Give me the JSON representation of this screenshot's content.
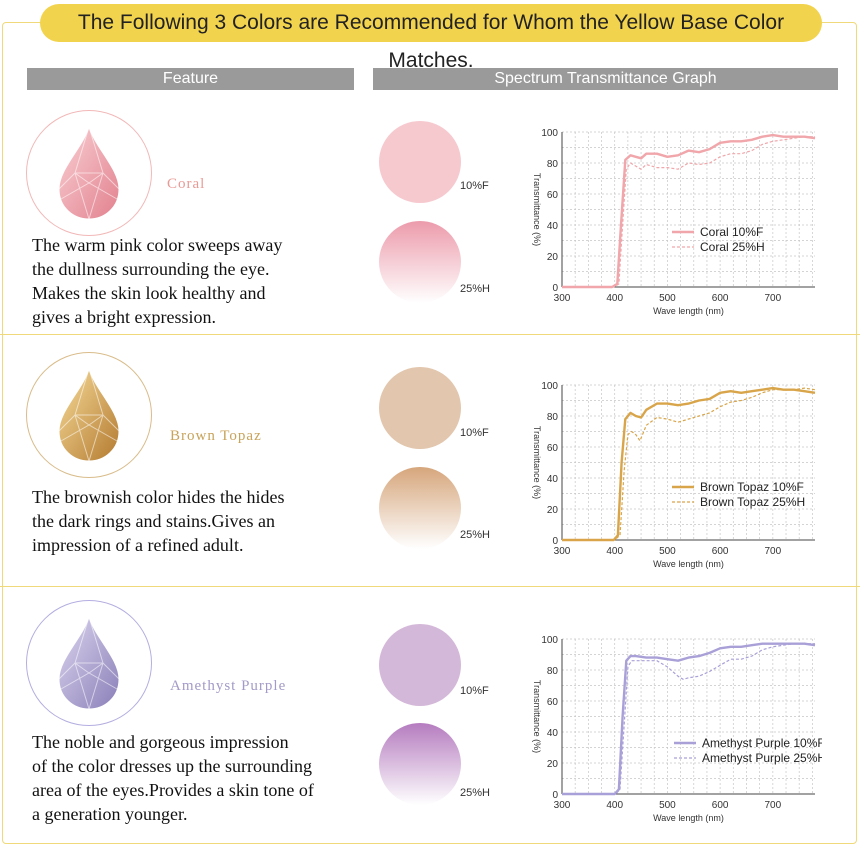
{
  "banner": "The Following 3 Colors are Recommended for Whom the Yellow Base Color Matches.",
  "headers": {
    "feature": "Feature",
    "graph": "Spectrum Transmittance Graph"
  },
  "products": [
    {
      "name": "Coral",
      "description": "The warm pink color sweeps away\nthe dullness surrounding the eye.\nMakes the skin look healthy and\ngives a bright expression.",
      "swatch_labels": [
        "10%F",
        "25%H"
      ],
      "colors": {
        "accent": "#f0a6aa",
        "name_text": "#e89a95",
        "ring": "#f2b8b8",
        "swatch_solid": "#f6c9cf",
        "swatch_grad_top": "#ec9bab",
        "gem_light": "#f9d0d4",
        "gem_dark": "#e2818e"
      }
    },
    {
      "name": "Brown Topaz",
      "description": "The brownish color hides the hides\nthe dark rings and stains.Gives an\nimpression of a refined adult.",
      "swatch_labels": [
        "10%F",
        "25%H"
      ],
      "colors": {
        "accent": "#d9a54a",
        "name_text": "#c8a35a",
        "ring": "#d9bc8a",
        "swatch_solid": "#e2c6ad",
        "swatch_grad_top": "#d6a67c",
        "gem_light": "#f6dc9a",
        "gem_dark": "#b47a30"
      }
    },
    {
      "name": "Amethyst Purple",
      "description": "The noble and gorgeous impression\nof the color dresses up the surrounding\narea of the eyes.Provides a skin tone of\na generation younger.",
      "swatch_labels": [
        "10%F",
        "25%H"
      ],
      "colors": {
        "accent": "#a9a0d8",
        "name_text": "#a49ac8",
        "ring": "#b3aee0",
        "swatch_solid": "#d4b8d9",
        "swatch_grad_top": "#b57cbf",
        "gem_light": "#ddd6ef",
        "gem_dark": "#8a7fb8"
      }
    }
  ],
  "chart_data": [
    {
      "type": "line",
      "ylabel": "Transmittance (%)",
      "xlabel": "Wave length (nm)",
      "xlim": [
        300,
        780
      ],
      "ylim": [
        0,
        100
      ],
      "xticks": [
        300,
        400,
        500,
        600,
        700
      ],
      "yticks": [
        0,
        20,
        40,
        60,
        80,
        100
      ],
      "grid": true,
      "legend": "center-right",
      "series": [
        {
          "name": "Coral 10%F",
          "style": "solid",
          "x": [
            300,
            395,
            405,
            412,
            420,
            430,
            440,
            450,
            460,
            480,
            500,
            520,
            540,
            560,
            580,
            600,
            620,
            640,
            660,
            680,
            700,
            720,
            740,
            760,
            780
          ],
          "y": [
            0,
            0,
            2,
            40,
            82,
            85,
            84,
            83,
            86,
            86,
            84,
            85,
            88,
            87,
            89,
            93,
            94,
            94,
            95,
            97,
            98,
            97,
            97,
            97,
            96
          ]
        },
        {
          "name": "Coral 25%H",
          "style": "dashed",
          "x": [
            300,
            398,
            408,
            415,
            422,
            430,
            440,
            450,
            460,
            480,
            500,
            520,
            540,
            560,
            580,
            600,
            620,
            640,
            660,
            680,
            700,
            720,
            740,
            760,
            780
          ],
          "y": [
            0,
            0,
            2,
            40,
            76,
            80,
            78,
            76,
            79,
            77,
            77,
            76,
            80,
            79,
            80,
            84,
            86,
            86,
            88,
            92,
            94,
            95,
            96,
            97,
            97
          ]
        }
      ]
    },
    {
      "type": "line",
      "ylabel": "Transmittance (%)",
      "xlabel": "Wave length (nm)",
      "xlim": [
        300,
        780
      ],
      "ylim": [
        0,
        100
      ],
      "xticks": [
        300,
        400,
        500,
        600,
        700
      ],
      "yticks": [
        0,
        20,
        40,
        60,
        80,
        100
      ],
      "grid": true,
      "legend": "center-right",
      "series": [
        {
          "name": "Brown Topaz 10%F",
          "style": "solid",
          "x": [
            300,
            398,
            406,
            413,
            420,
            430,
            440,
            450,
            460,
            480,
            500,
            520,
            540,
            560,
            580,
            600,
            620,
            640,
            660,
            680,
            700,
            720,
            740,
            760,
            780
          ],
          "y": [
            0,
            0,
            3,
            50,
            78,
            82,
            80,
            79,
            84,
            88,
            88,
            87,
            88,
            90,
            91,
            95,
            96,
            95,
            96,
            97,
            98,
            97,
            97,
            96,
            95
          ]
        },
        {
          "name": "Brown Topaz 25%H",
          "style": "dashed",
          "x": [
            300,
            400,
            410,
            418,
            425,
            432,
            440,
            448,
            460,
            480,
            500,
            520,
            540,
            560,
            580,
            600,
            620,
            640,
            660,
            680,
            700,
            720,
            740,
            760,
            780
          ],
          "y": [
            0,
            0,
            3,
            45,
            68,
            70,
            68,
            64,
            74,
            79,
            78,
            76,
            78,
            80,
            82,
            86,
            89,
            90,
            92,
            95,
            97,
            97,
            97,
            98,
            97
          ]
        }
      ]
    },
    {
      "type": "line",
      "ylabel": "Transmittance (%)",
      "xlabel": "Wave length (nm)",
      "xlim": [
        300,
        780
      ],
      "ylim": [
        0,
        100
      ],
      "xticks": [
        300,
        400,
        500,
        600,
        700
      ],
      "yticks": [
        0,
        20,
        40,
        60,
        80,
        100
      ],
      "grid": true,
      "legend": "bottom-right",
      "series": [
        {
          "name": "Amethyst Purple 10%F",
          "style": "solid",
          "x": [
            300,
            400,
            408,
            415,
            422,
            430,
            440,
            460,
            480,
            500,
            520,
            540,
            560,
            580,
            600,
            620,
            640,
            660,
            680,
            700,
            720,
            740,
            760,
            780
          ],
          "y": [
            0,
            0,
            3,
            50,
            86,
            89,
            89,
            88,
            88,
            87,
            86,
            88,
            89,
            91,
            94,
            95,
            95,
            96,
            97,
            97,
            97,
            97,
            97,
            96
          ]
        },
        {
          "name": "Amethyst Purple 25%H",
          "style": "dashed",
          "x": [
            300,
            402,
            410,
            418,
            425,
            432,
            440,
            460,
            480,
            500,
            520,
            530,
            540,
            560,
            580,
            600,
            620,
            640,
            660,
            680,
            700,
            720,
            740,
            760,
            780
          ],
          "y": [
            0,
            0,
            3,
            45,
            82,
            86,
            86,
            86,
            86,
            82,
            76,
            74,
            75,
            76,
            79,
            83,
            87,
            87,
            89,
            93,
            95,
            96,
            97,
            97,
            97
          ]
        }
      ]
    }
  ]
}
